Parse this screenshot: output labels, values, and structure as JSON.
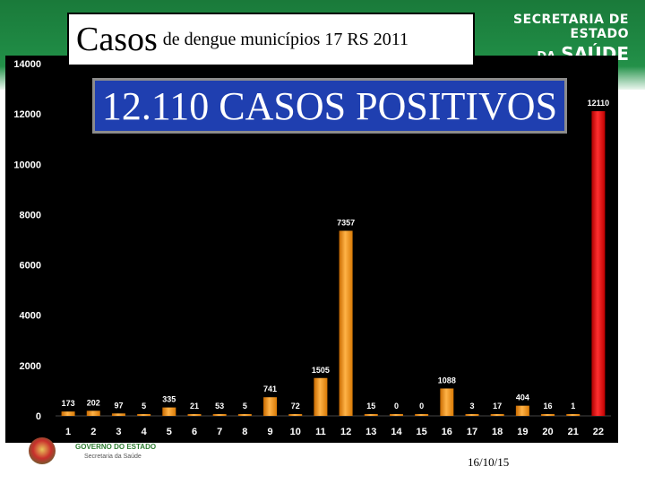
{
  "header": {
    "title_big": "Casos",
    "title_small": "de dengue municípios 17 RS 2011",
    "brand_line1": "SECRETARIA DE ESTADO",
    "brand_da": "DA",
    "brand_line2": "SAÚDE"
  },
  "highlight": {
    "text": "12.110 CASOS POSITIVOS"
  },
  "footer": {
    "gov_text": "GOVERNO DO ESTADO",
    "sec_text": "Secretaria da Saúde",
    "date": "16/10/15"
  },
  "colors": {
    "bar": "#ff9a1e",
    "bar_highlight": "#ff1a1a",
    "axis_text": "#ffffff",
    "background": "#000000"
  },
  "chart_data": {
    "type": "bar",
    "title": "",
    "xlabel": "",
    "ylabel": "",
    "categories": [
      "1",
      "2",
      "3",
      "4",
      "5",
      "6",
      "7",
      "8",
      "9",
      "10",
      "11",
      "12",
      "13",
      "14",
      "15",
      "16",
      "17",
      "18",
      "19",
      "20",
      "21",
      "22"
    ],
    "values": [
      173,
      202,
      97,
      5,
      335,
      21,
      53,
      5,
      741,
      72,
      1505,
      7357,
      15,
      0,
      0,
      1088,
      3,
      17,
      404,
      16,
      1,
      12110
    ],
    "highlight_index": 21,
    "ylim": [
      0,
      14000
    ],
    "yticks": [
      0,
      2000,
      4000,
      6000,
      8000,
      10000,
      12000,
      14000
    ],
    "grid": false,
    "legend": "none"
  }
}
